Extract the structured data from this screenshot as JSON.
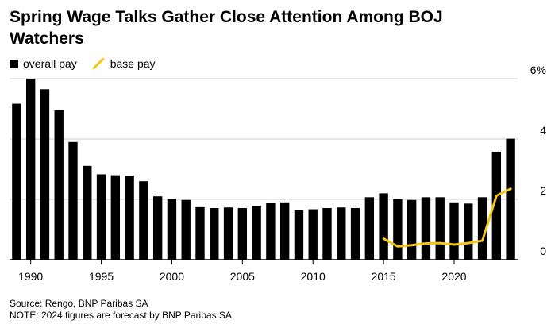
{
  "title": "Spring Wage Talks Gather Close Attention Among BOJ Watchers",
  "legend": {
    "overall_label": "overall pay",
    "base_label": "base pay"
  },
  "colors": {
    "overall": "#000000",
    "base": "#f5c518",
    "grid": "#cccccc"
  },
  "chart_data": {
    "type": "bar",
    "x": [
      1989,
      1990,
      1991,
      1992,
      1993,
      1994,
      1995,
      1996,
      1997,
      1998,
      1999,
      2000,
      2001,
      2002,
      2003,
      2004,
      2005,
      2006,
      2007,
      2008,
      2009,
      2010,
      2011,
      2012,
      2013,
      2014,
      2015,
      2016,
      2017,
      2018,
      2019,
      2020,
      2021,
      2022,
      2023,
      2024
    ],
    "series": [
      {
        "name": "overall pay",
        "type": "bar",
        "values": [
          5.17,
          6.0,
          5.65,
          4.95,
          3.9,
          3.11,
          2.83,
          2.8,
          2.79,
          2.6,
          2.1,
          2.02,
          1.98,
          1.74,
          1.71,
          1.73,
          1.71,
          1.79,
          1.87,
          1.9,
          1.64,
          1.67,
          1.71,
          1.73,
          1.71,
          2.07,
          2.2,
          2.01,
          1.98,
          2.07,
          2.07,
          1.9,
          1.86,
          2.07,
          3.58,
          4.01
        ]
      },
      {
        "name": "base pay",
        "type": "line",
        "x": [
          2015,
          2016,
          2017,
          2018,
          2019,
          2020,
          2021,
          2022,
          2023,
          2024
        ],
        "values": [
          0.7,
          0.44,
          0.48,
          0.54,
          0.55,
          0.5,
          0.55,
          0.63,
          2.12,
          2.35
        ]
      }
    ],
    "y_ticks": [
      0,
      2,
      4,
      6
    ],
    "y_tick_labels": [
      "0",
      "2",
      "4",
      "6%"
    ],
    "x_ticks": [
      1990,
      1995,
      2000,
      2005,
      2010,
      2015,
      2020
    ],
    "ylim": [
      0,
      6.5
    ],
    "xlim": [
      1988.5,
      2024.5
    ],
    "grid": true,
    "legend_position": "top-left"
  },
  "footer": {
    "source": "Source: Rengo, BNP Paribas SA",
    "note": "NOTE: 2024 figures are forecast by BNP Paribas SA"
  }
}
